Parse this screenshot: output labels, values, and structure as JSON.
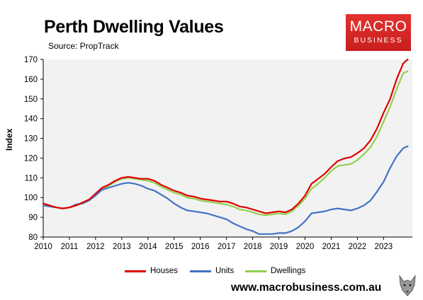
{
  "header": {
    "title": "Perth Dwelling Values",
    "source": "Source: PropTrack"
  },
  "logo": {
    "line1": "MACRO",
    "line2": "BUSINESS"
  },
  "footer": {
    "website": "www.macrobusiness.com.au"
  },
  "colors": {
    "houses": "#e00000",
    "units": "#4472c4",
    "dwellings": "#92d050",
    "plot_bg": "#f2f2f2"
  },
  "chart_data": {
    "type": "line",
    "title": "Perth Dwelling Values",
    "subtitle": "Source: PropTrack",
    "xlabel": "",
    "ylabel": "Index",
    "xlim": [
      2010,
      2024.1
    ],
    "ylim": [
      80,
      170
    ],
    "xticks": [
      "2010",
      "2011",
      "2012",
      "2013",
      "2014",
      "2015",
      "2016",
      "2017",
      "2018",
      "2019",
      "2020",
      "2021",
      "2022",
      "2023"
    ],
    "yticks": [
      80,
      90,
      100,
      110,
      120,
      130,
      140,
      150,
      160,
      170
    ],
    "grid": false,
    "legend_position": "bottom",
    "x": [
      2010.0,
      2010.25,
      2010.5,
      2010.75,
      2011.0,
      2011.25,
      2011.5,
      2011.75,
      2012.0,
      2012.25,
      2012.5,
      2012.75,
      2013.0,
      2013.25,
      2013.5,
      2013.75,
      2014.0,
      2014.25,
      2014.5,
      2014.75,
      2015.0,
      2015.25,
      2015.5,
      2015.75,
      2016.0,
      2016.25,
      2016.5,
      2016.75,
      2017.0,
      2017.25,
      2017.5,
      2017.75,
      2018.0,
      2018.25,
      2018.5,
      2018.75,
      2019.0,
      2019.25,
      2019.5,
      2019.75,
      2020.0,
      2020.25,
      2020.5,
      2020.75,
      2021.0,
      2021.25,
      2021.5,
      2021.75,
      2022.0,
      2022.25,
      2022.5,
      2022.75,
      2023.0,
      2023.25,
      2023.5,
      2023.75,
      2023.92
    ],
    "series": [
      {
        "name": "Houses",
        "values": [
          97,
          96,
          95,
          94.5,
          95,
          96,
          97.5,
          99,
          102,
          105,
          106.5,
          108.5,
          110,
          110.5,
          110,
          109.5,
          109.5,
          108.5,
          106.5,
          105,
          103.5,
          102.5,
          101,
          100.5,
          99.5,
          99,
          98.5,
          98,
          98,
          97,
          95.5,
          95,
          94,
          93,
          92,
          92.5,
          93,
          92.5,
          94,
          97,
          101,
          107,
          109.5,
          112,
          115.5,
          118.5,
          119.8,
          120.5,
          122.5,
          125,
          129,
          135,
          143,
          150,
          160,
          168,
          170
        ]
      },
      {
        "name": "Units",
        "values": [
          96,
          95.5,
          95,
          94.5,
          95,
          96.5,
          97,
          98.5,
          101,
          104,
          105,
          106,
          107,
          107.5,
          107,
          106,
          104.5,
          103.5,
          101.5,
          99.5,
          97,
          95,
          93.5,
          93,
          92.5,
          92,
          91,
          90,
          89,
          87,
          85.5,
          84,
          83,
          81.5,
          81.5,
          81.5,
          82,
          82,
          83,
          85,
          88,
          92,
          92.5,
          93,
          94,
          94.5,
          94,
          93.5,
          94.5,
          96,
          98.5,
          103,
          108,
          115,
          121,
          125,
          126
        ]
      },
      {
        "name": "Dwellings",
        "values": [
          97,
          95.5,
          95,
          94.5,
          95,
          96,
          97,
          98.5,
          101.5,
          104.5,
          106,
          108,
          109.5,
          110,
          109.5,
          109,
          108.5,
          107.5,
          105.5,
          104,
          102.5,
          101.5,
          100,
          99.5,
          98.5,
          98,
          97.5,
          97,
          96.5,
          95.5,
          94,
          93.5,
          92.5,
          91.5,
          91,
          91.5,
          92,
          91.5,
          93,
          96,
          99.5,
          104.5,
          107,
          110,
          113.5,
          116,
          116.5,
          117,
          119,
          122,
          125.5,
          131,
          138.5,
          146,
          155,
          163,
          164
        ]
      }
    ]
  }
}
